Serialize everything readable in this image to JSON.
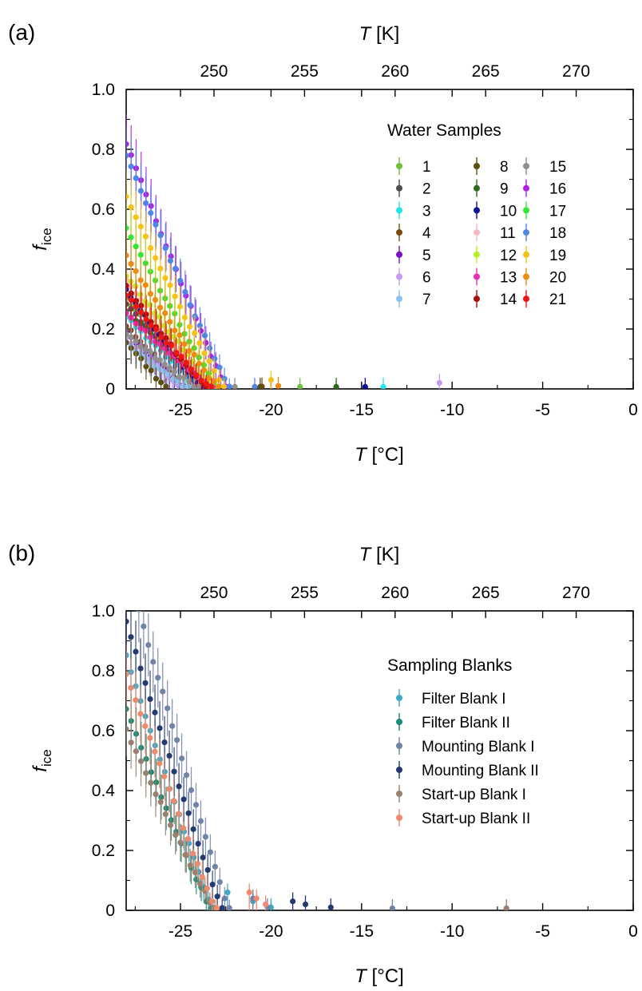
{
  "figure": {
    "panels": [
      {
        "panel_label": "(a)",
        "x_label_var": "T",
        "x_label_unit": " [°C]",
        "top_label_var": "T",
        "top_label_unit": " [K]",
        "y_label_var": "f",
        "y_label_sub": "ice",
        "legend_title": "Water Samples"
      },
      {
        "panel_label": "(b)",
        "x_label_var": "T",
        "x_label_unit": " [°C]",
        "top_label_var": "T",
        "top_label_unit": " [K]",
        "y_label_var": "f",
        "y_label_sub": "ice",
        "legend_title": "Sampling Blanks"
      }
    ]
  },
  "chart_data": [
    {
      "type": "scatter",
      "panel": "(a)",
      "xlabel": "T [°C]",
      "x2label": "T [K]",
      "ylabel": "f_ice",
      "xlim": [
        -28,
        0
      ],
      "ylim": [
        0,
        1
      ],
      "x_ticks": [
        -25,
        -20,
        -15,
        -10,
        -5,
        0
      ],
      "x2_ticks": [
        250,
        255,
        260,
        265,
        270
      ],
      "y_ticks": [
        0,
        0.2,
        0.4,
        0.6,
        0.8,
        1.0
      ],
      "x_tick_labels": [
        "-25",
        "-20",
        "-15",
        "-10",
        "-5",
        "0"
      ],
      "x2_tick_labels": [
        "250",
        "255",
        "260",
        "265",
        "270"
      ],
      "y_tick_labels": [
        "0",
        "0.2",
        "0.4",
        "0.6",
        "0.8",
        "1.0"
      ],
      "grid": false,
      "legend_title": "Water Samples",
      "legend_position": "upper-right",
      "legend_columns": 3,
      "series": [
        {
          "name": "1",
          "color": "#6fbf40",
          "t_end": -23.8,
          "f_start": 0.3,
          "t_start": -28,
          "outliers": [
            [
              -18.4,
              0.007
            ]
          ]
        },
        {
          "name": "2",
          "color": "#4d4d4d",
          "t_end": -23.5,
          "f_start": 0.28,
          "t_start": -28,
          "outliers": []
        },
        {
          "name": "3",
          "color": "#22e6e6",
          "t_end": -23.9,
          "f_start": 0.24,
          "t_start": -28,
          "outliers": [
            [
              -13.8,
              0.007
            ]
          ]
        },
        {
          "name": "4",
          "color": "#7a4a12",
          "t_end": -24.6,
          "f_start": 0.21,
          "t_start": -28,
          "outliers": [
            [
              -20.5,
              0.008
            ]
          ]
        },
        {
          "name": "5",
          "color": "#7a12c4",
          "t_end": -24.8,
          "f_start": 0.19,
          "t_start": -28,
          "outliers": []
        },
        {
          "name": "6",
          "color": "#c79af2",
          "t_end": -24.9,
          "f_start": 0.17,
          "t_start": -28,
          "outliers": [
            [
              -10.7,
              0.02
            ]
          ]
        },
        {
          "name": "7",
          "color": "#8dc0f2",
          "t_end": -24.6,
          "f_start": 0.15,
          "t_start": -28,
          "outliers": []
        },
        {
          "name": "8",
          "color": "#5a4e12",
          "t_end": -25.8,
          "f_start": 0.16,
          "t_start": -28,
          "outliers": [
            [
              -20.6,
              0.007
            ]
          ]
        },
        {
          "name": "9",
          "color": "#2f6a1a",
          "t_end": -23.2,
          "f_start": 0.26,
          "t_start": -28,
          "outliers": [
            [
              -16.4,
              0.007
            ]
          ]
        },
        {
          "name": "10",
          "color": "#0c129a",
          "t_end": -23.8,
          "f_start": 0.33,
          "t_start": -28,
          "outliers": [
            [
              -14.8,
              0.007
            ]
          ]
        },
        {
          "name": "11",
          "color": "#f5b8bd",
          "t_end": -23.2,
          "f_start": 0.36,
          "t_start": -28,
          "outliers": []
        },
        {
          "name": "12",
          "color": "#b8ee28",
          "t_end": -23.0,
          "f_start": 0.38,
          "t_start": -28,
          "outliers": []
        },
        {
          "name": "13",
          "color": "#e62eb8",
          "t_end": -23.2,
          "f_start": 0.25,
          "t_start": -28,
          "outliers": []
        },
        {
          "name": "14",
          "color": "#a60f12",
          "t_end": -23.6,
          "f_start": 0.34,
          "t_start": -28,
          "outliers": []
        },
        {
          "name": "15",
          "color": "#8f8f8f",
          "t_end": -24.0,
          "f_start": 0.18,
          "t_start": -28,
          "outliers": [
            [
              -22.0,
              0.007
            ]
          ]
        },
        {
          "name": "16",
          "color": "#b21fe0",
          "t_end": -22.5,
          "f_start": 0.82,
          "t_start": -28,
          "outliers": []
        },
        {
          "name": "17",
          "color": "#33e633",
          "t_end": -22.9,
          "f_start": 0.54,
          "t_start": -28,
          "outliers": []
        },
        {
          "name": "18",
          "color": "#4f86e6",
          "t_end": -22.3,
          "f_start": 0.78,
          "t_start": -28,
          "outliers": [
            [
              -20.9,
              0.007
            ]
          ]
        },
        {
          "name": "19",
          "color": "#f5c21a",
          "t_end": -22.6,
          "f_start": 0.64,
          "t_start": -28,
          "outliers": [
            [
              -20.0,
              0.03
            ]
          ]
        },
        {
          "name": "20",
          "color": "#f08a14",
          "t_end": -22.9,
          "f_start": 0.44,
          "t_start": -28,
          "outliers": [
            [
              -19.6,
              0.01
            ]
          ]
        },
        {
          "name": "21",
          "color": "#f01414",
          "t_end": -23.3,
          "f_start": 0.31,
          "t_start": -28,
          "outliers": []
        }
      ]
    },
    {
      "type": "scatter",
      "panel": "(b)",
      "xlabel": "T [°C]",
      "x2label": "T [K]",
      "ylabel": "f_ice",
      "xlim": [
        -28,
        0
      ],
      "ylim": [
        0,
        1
      ],
      "x_ticks": [
        -25,
        -20,
        -15,
        -10,
        -5,
        0
      ],
      "x2_ticks": [
        250,
        255,
        260,
        265,
        270
      ],
      "y_ticks": [
        0,
        0.2,
        0.4,
        0.6,
        0.8,
        1.0
      ],
      "x_tick_labels": [
        "-25",
        "-20",
        "-15",
        "-10",
        "-5",
        "0"
      ],
      "x2_tick_labels": [
        "250",
        "255",
        "260",
        "265",
        "270"
      ],
      "y_tick_labels": [
        "0",
        "0.2",
        "0.4",
        "0.6",
        "0.8",
        "1.0"
      ],
      "grid": false,
      "legend_title": "Sampling Blanks",
      "legend_position": "right",
      "legend_columns": 1,
      "series": [
        {
          "name": "Filter Blank I",
          "color": "#3fa9c6",
          "t_end": -23.2,
          "f_start": 0.85,
          "t_start": -28,
          "outliers": [
            [
              -22.4,
              0.06
            ],
            [
              -21.0,
              0.03
            ],
            [
              -20.0,
              0.01
            ]
          ]
        },
        {
          "name": "Filter Blank II",
          "color": "#1a8a72",
          "t_end": -23.3,
          "f_start": 0.67,
          "t_start": -28,
          "outliers": []
        },
        {
          "name": "Mounting Blank I",
          "color": "#7283a8",
          "t_end": -22.3,
          "f_start": 1.0,
          "t_start": -27.3,
          "outliers": [
            [
              -21.0,
              0.04
            ],
            [
              -20.2,
              0.01
            ],
            [
              -13.3,
              0.007
            ]
          ]
        },
        {
          "name": "Mounting Blank II",
          "color": "#253a6e",
          "t_end": -22.7,
          "f_start": 0.96,
          "t_start": -28,
          "outliers": [
            [
              -18.8,
              0.03
            ],
            [
              -18.1,
              0.02
            ],
            [
              -16.7,
              0.01
            ]
          ]
        },
        {
          "name": "Start-up Blank I",
          "color": "#998070",
          "t_end": -23.1,
          "f_start": 0.6,
          "t_start": -28,
          "outliers": [
            [
              -7.0,
              0.007
            ]
          ]
        },
        {
          "name": "Start-up Blank II",
          "color": "#ee8a6e",
          "t_end": -23.0,
          "f_start": 0.79,
          "t_start": -28,
          "outliers": [
            [
              -21.2,
              0.06
            ],
            [
              -20.8,
              0.04
            ],
            [
              -20.3,
              0.02
            ]
          ]
        }
      ]
    }
  ]
}
